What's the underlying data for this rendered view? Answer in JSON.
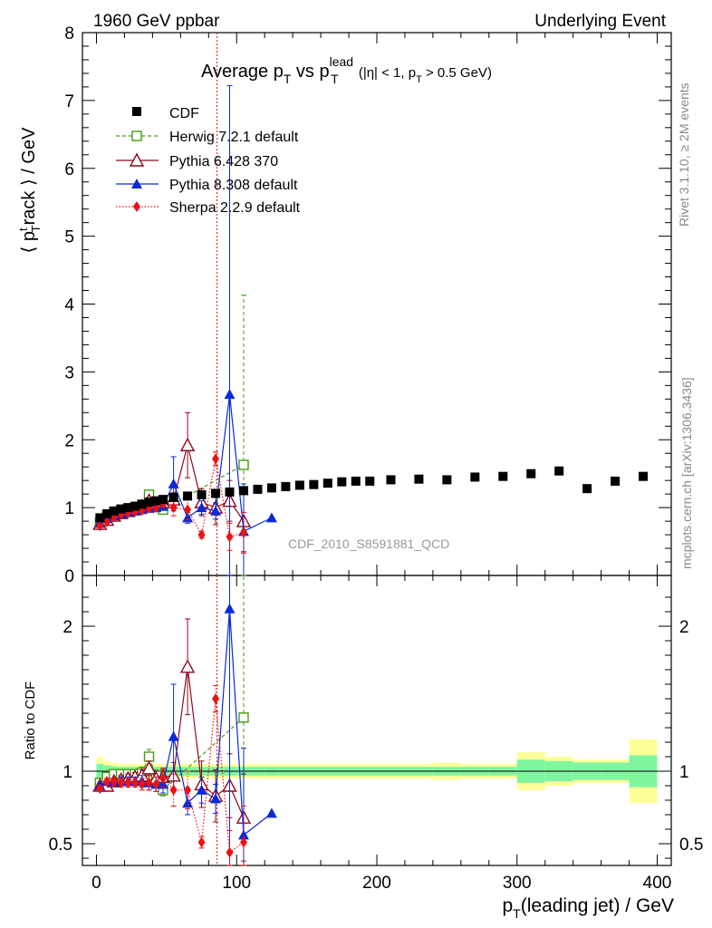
{
  "header": {
    "left": "1960 GeV ppbar",
    "right": "Underlying Event",
    "title_main": "Average p",
    "title_sub_T1": "T",
    "title_vs": " vs p",
    "title_sup_lead": "lead",
    "title_sub_T2": "T",
    "title_cuts_a": " (|η| < 1, p",
    "title_cuts_T": "T",
    "title_cuts_b": " > 0.5 GeV)",
    "analysis_tag": "CDF_2010_S8591881_QCD",
    "rivet_label": "Rivet 3.1.10, ≥ 2M events",
    "mcplots_label": "mcplots.cern.ch [arXiv:1306.3436]"
  },
  "axes": {
    "ylabel_main_a": "⟨ p",
    "ylabel_main_sup": "t",
    "ylabel_main_sub": "T",
    "ylabel_main_b": "rack ⟩ / GeV",
    "ylabel_ratio": "Ratio to CDF",
    "xlabel_a": "p",
    "xlabel_sub": "T",
    "xlabel_b": "(leading jet) / GeV"
  },
  "legend": [
    {
      "label": "CDF"
    },
    {
      "label": "Herwig 7.2.1 default"
    },
    {
      "label": "Pythia 6.428 370"
    },
    {
      "label": "Pythia 8.308 default"
    },
    {
      "label": "Sherpa 2.2.9 default"
    }
  ],
  "chart_data": {
    "type": "scatter",
    "xlabel": "p_T(leading jet) / GeV",
    "ylabel": "⟨ p_T^track ⟩ / GeV",
    "xlim": [
      -10,
      410
    ],
    "ylim": [
      0,
      8
    ],
    "ratio_ylim": [
      0.35,
      2.35
    ],
    "xticks": [
      0,
      100,
      200,
      300,
      400
    ],
    "yticks": [
      0,
      1,
      2,
      3,
      4,
      5,
      6,
      7,
      8
    ],
    "ratio_yticks": [
      0.5,
      1,
      2
    ],
    "vertical_line_x": 86,
    "data": {
      "name": "CDF",
      "color": "#000000",
      "x": [
        2.5,
        7.5,
        12.5,
        17.5,
        22.5,
        27.5,
        32.5,
        37.5,
        42.5,
        47.5,
        55,
        65,
        75,
        85,
        95,
        105,
        115,
        125,
        135,
        145,
        155,
        165,
        175,
        185,
        195,
        210,
        230,
        250,
        270,
        290,
        310,
        330,
        350,
        370,
        390
      ],
      "y": [
        0.85,
        0.91,
        0.95,
        0.98,
        1.0,
        1.02,
        1.05,
        1.08,
        1.1,
        1.12,
        1.15,
        1.17,
        1.19,
        1.21,
        1.23,
        1.25,
        1.27,
        1.29,
        1.31,
        1.33,
        1.34,
        1.36,
        1.38,
        1.39,
        1.39,
        1.41,
        1.42,
        1.41,
        1.45,
        1.46,
        1.5,
        1.54,
        1.28,
        1.39,
        1.46
      ]
    },
    "series": [
      {
        "name": "Herwig 7.2.1 default",
        "color": "#4a9a10",
        "marker": "open-square",
        "line": "dashed",
        "x": [
          2.5,
          7.5,
          12.5,
          17.5,
          22.5,
          27.5,
          32.5,
          37.5,
          42.5,
          47.5,
          105
        ],
        "y": [
          0.78,
          0.87,
          0.93,
          0.96,
          0.98,
          1.0,
          1.04,
          1.19,
          1.07,
          0.97,
          1.63
        ],
        "err": [
          0.03,
          0.03,
          0.03,
          0.03,
          0.03,
          0.03,
          0.04,
          0.06,
          0.05,
          0.05,
          2.5
        ],
        "ratio": [
          0.92,
          0.96,
          0.98,
          0.98,
          0.98,
          0.98,
          0.99,
          1.1,
          0.97,
          0.87,
          1.37
        ],
        "ratio_err": [
          0.03,
          0.03,
          0.03,
          0.03,
          0.03,
          0.03,
          0.04,
          0.05,
          0.04,
          0.04,
          1.9
        ]
      },
      {
        "name": "Pythia 6.428 370",
        "color": "#8b0a1e",
        "marker": "open-triangle",
        "line": "solid",
        "x": [
          2.5,
          7.5,
          12.5,
          17.5,
          22.5,
          27.5,
          32.5,
          37.5,
          42.5,
          47.5,
          55,
          65,
          75,
          85,
          95,
          105
        ],
        "y": [
          0.76,
          0.82,
          0.88,
          0.92,
          0.95,
          0.98,
          1.02,
          1.1,
          1.05,
          1.08,
          1.12,
          1.92,
          1.08,
          1.0,
          1.1,
          0.8
        ],
        "err": [
          0.02,
          0.02,
          0.02,
          0.03,
          0.03,
          0.03,
          0.04,
          0.05,
          0.05,
          0.06,
          0.1,
          0.48,
          0.2,
          0.25,
          0.3,
          0.45
        ],
        "ratio": [
          0.9,
          0.9,
          0.93,
          0.94,
          0.95,
          0.96,
          0.97,
          1.02,
          0.95,
          0.96,
          0.97,
          1.72,
          0.91,
          0.83,
          0.9,
          0.68
        ],
        "ratio_err": [
          0.02,
          0.02,
          0.02,
          0.03,
          0.03,
          0.03,
          0.04,
          0.05,
          0.05,
          0.06,
          0.09,
          0.33,
          0.16,
          0.18,
          0.22,
          0.3
        ]
      },
      {
        "name": "Pythia 8.308 default",
        "color": "#0a2ad8",
        "marker": "filled-triangle",
        "line": "solid",
        "x": [
          2.5,
          7.5,
          12.5,
          17.5,
          22.5,
          27.5,
          32.5,
          37.5,
          42.5,
          47.5,
          55,
          65,
          75,
          85,
          95,
          105,
          125
        ],
        "y": [
          0.77,
          0.84,
          0.88,
          0.91,
          0.93,
          0.95,
          0.97,
          0.99,
          1.0,
          1.02,
          1.35,
          0.85,
          1.0,
          0.95,
          2.67,
          0.65,
          0.85
        ],
        "err": [
          0.02,
          0.02,
          0.02,
          0.03,
          0.03,
          0.03,
          0.04,
          0.05,
          0.05,
          0.06,
          0.4,
          0.08,
          0.1,
          0.12,
          4.55,
          0.7,
          0.0
        ],
        "ratio": [
          0.9,
          0.93,
          0.93,
          0.93,
          0.93,
          0.93,
          0.93,
          0.92,
          0.91,
          0.91,
          1.24,
          0.78,
          0.87,
          0.81,
          2.12,
          0.56,
          0.71
        ],
        "ratio_err": [
          0.02,
          0.02,
          0.02,
          0.03,
          0.03,
          0.03,
          0.04,
          0.05,
          0.05,
          0.06,
          0.36,
          0.08,
          0.09,
          0.1,
          3.0,
          0.6,
          0.0
        ]
      },
      {
        "name": "Sherpa 2.2.9 default",
        "color": "#ee1111",
        "marker": "filled-diamond",
        "line": "dotted",
        "x": [
          2.5,
          7.5,
          12.5,
          17.5,
          22.5,
          27.5,
          32.5,
          37.5,
          42.5,
          47.5,
          55,
          65,
          75,
          85,
          95,
          105
        ],
        "y": [
          0.73,
          0.79,
          0.86,
          0.9,
          0.92,
          0.94,
          0.96,
          0.99,
          1.0,
          1.06,
          1.0,
          0.97,
          0.6,
          1.72,
          0.57,
          0.63
        ],
        "err": [
          0.02,
          0.02,
          0.02,
          0.03,
          0.03,
          0.03,
          0.04,
          0.05,
          0.05,
          0.06,
          0.12,
          0.15,
          0.05,
          0.1,
          0.2,
          0.3
        ],
        "ratio": [
          0.88,
          0.93,
          0.93,
          0.92,
          0.92,
          0.92,
          0.91,
          0.92,
          0.91,
          0.95,
          0.87,
          0.87,
          0.51,
          1.5,
          0.44,
          0.51
        ],
        "ratio_err": [
          0.02,
          0.02,
          0.02,
          0.03,
          0.03,
          0.03,
          0.04,
          0.05,
          0.05,
          0.06,
          0.11,
          0.13,
          0.04,
          0.09,
          0.15,
          0.25
        ]
      }
    ],
    "uncertainty_bands": {
      "x_edges": [
        0,
        5,
        10,
        15,
        20,
        25,
        30,
        35,
        40,
        45,
        50,
        60,
        70,
        80,
        90,
        100,
        110,
        120,
        130,
        140,
        150,
        160,
        170,
        180,
        190,
        200,
        220,
        240,
        260,
        280,
        300,
        320,
        340,
        360,
        380,
        400
      ],
      "inner": [
        0.05,
        0.04,
        0.035,
        0.03,
        0.03,
        0.03,
        0.03,
        0.03,
        0.03,
        0.03,
        0.03,
        0.03,
        0.03,
        0.03,
        0.03,
        0.03,
        0.03,
        0.03,
        0.03,
        0.03,
        0.03,
        0.03,
        0.03,
        0.03,
        0.03,
        0.03,
        0.03,
        0.03,
        0.03,
        0.03,
        0.08,
        0.07,
        0.06,
        0.06,
        0.11
      ],
      "outer": [
        0.1,
        0.07,
        0.06,
        0.05,
        0.05,
        0.05,
        0.05,
        0.05,
        0.05,
        0.05,
        0.05,
        0.05,
        0.05,
        0.05,
        0.05,
        0.05,
        0.05,
        0.05,
        0.05,
        0.05,
        0.05,
        0.05,
        0.05,
        0.05,
        0.05,
        0.05,
        0.05,
        0.06,
        0.05,
        0.05,
        0.13,
        0.1,
        0.08,
        0.08,
        0.22
      ],
      "inner_color": "#7ff5a0",
      "outer_color": "#ffff99"
    }
  }
}
